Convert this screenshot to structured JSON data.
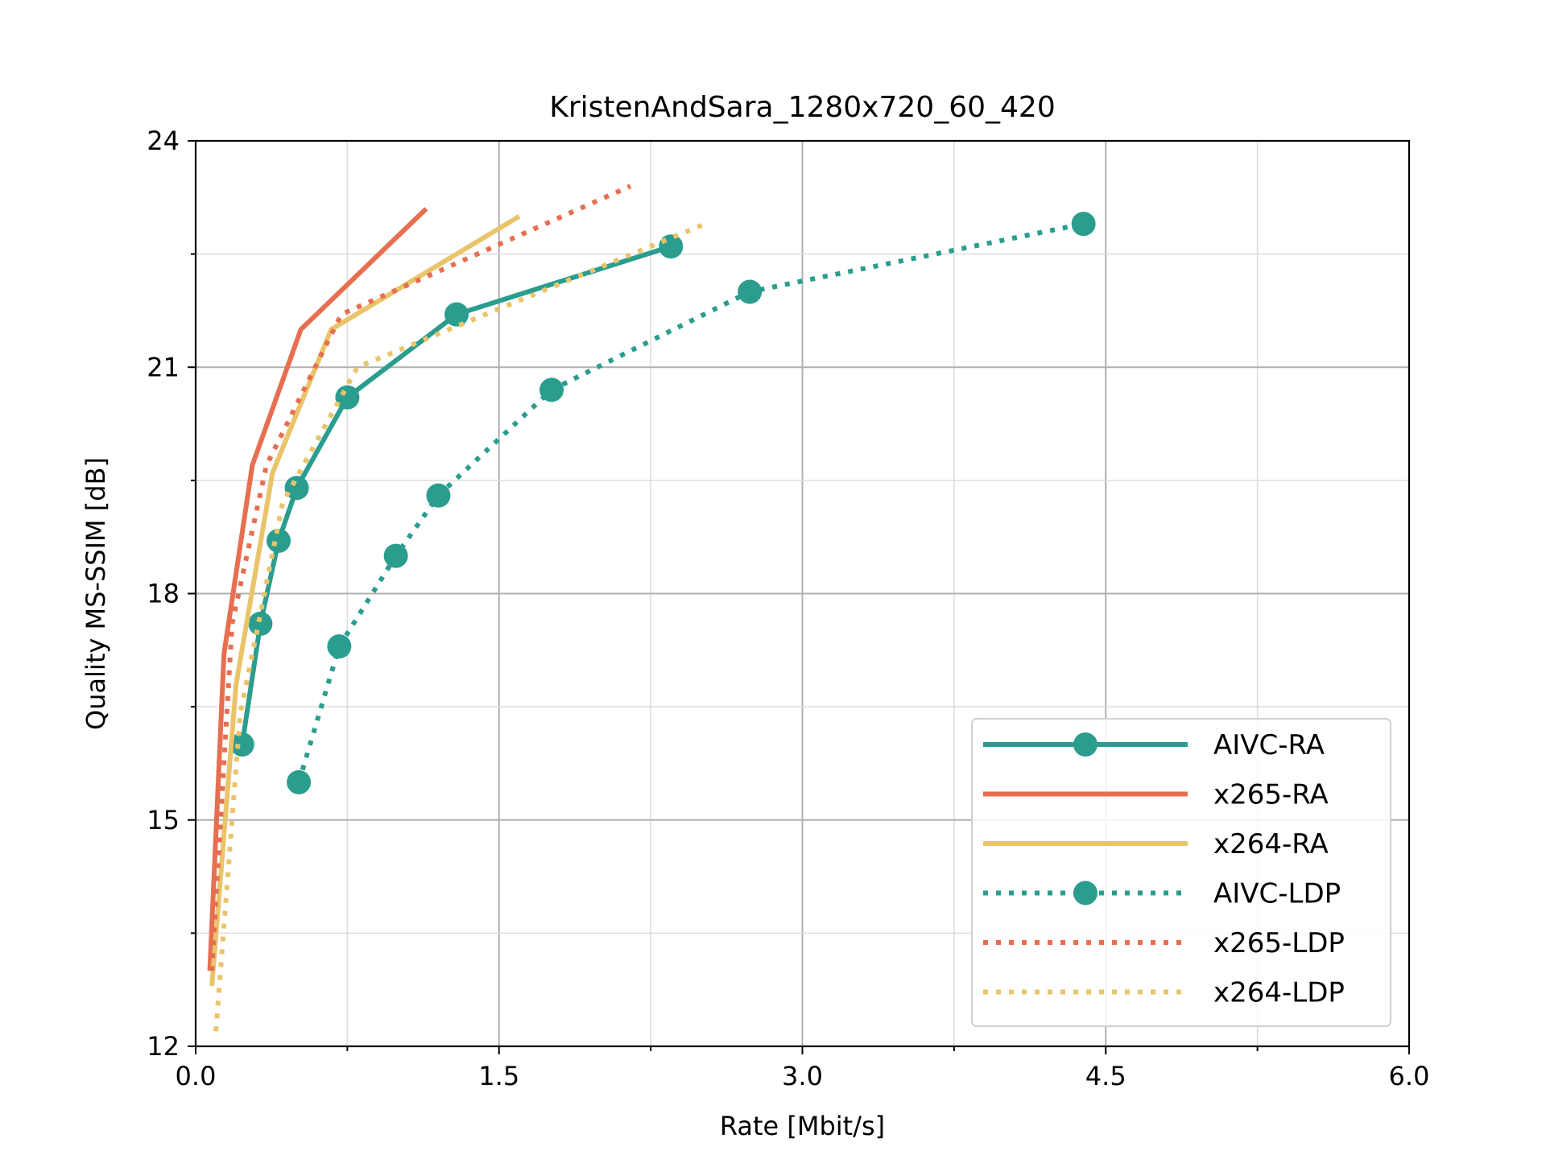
{
  "chart_data": {
    "type": "line",
    "title": "KristenAndSara_1280x720_60_420",
    "xlabel": "Rate [Mbit/s]",
    "ylabel": "Quality MS-SSIM [dB]",
    "xlim": [
      0,
      6
    ],
    "ylim": [
      12,
      24
    ],
    "xticks": [
      "0.0",
      "1.5",
      "3.0",
      "4.5",
      "6.0"
    ],
    "yticks": [
      "12",
      "15",
      "18",
      "21",
      "24"
    ],
    "grid": true,
    "legend_position": "lower right",
    "series": [
      {
        "name": "AIVC-RA",
        "color": "#2a9d8f",
        "style": "solid",
        "marker": "circle",
        "x": [
          0.23,
          0.32,
          0.41,
          0.5,
          0.75,
          1.29,
          2.35
        ],
        "y": [
          16.0,
          17.6,
          18.7,
          19.4,
          20.6,
          21.7,
          22.6
        ]
      },
      {
        "name": "x265-RA",
        "color": "#e76f51",
        "style": "solid",
        "marker": "none",
        "x": [
          0.07,
          0.14,
          0.28,
          0.52,
          1.14
        ],
        "y": [
          13.0,
          17.2,
          19.7,
          21.5,
          23.1
        ]
      },
      {
        "name": "x264-RA",
        "color": "#e9c46a",
        "style": "solid",
        "marker": "none",
        "x": [
          0.08,
          0.2,
          0.38,
          0.67,
          1.6
        ],
        "y": [
          12.8,
          16.8,
          19.6,
          21.5,
          23.0
        ]
      },
      {
        "name": "AIVC-LDP",
        "color": "#2a9d8f",
        "style": "dotted",
        "marker": "circle",
        "x": [
          0.51,
          0.71,
          0.99,
          1.2,
          1.76,
          2.74,
          4.39
        ],
        "y": [
          15.5,
          17.3,
          18.5,
          19.3,
          20.7,
          22.0,
          22.9
        ]
      },
      {
        "name": "x265-LDP",
        "color": "#e76f51",
        "style": "dotted",
        "marker": "none",
        "x": [
          0.08,
          0.18,
          0.35,
          0.72,
          2.15
        ],
        "y": [
          13.0,
          17.6,
          19.7,
          21.7,
          23.4
        ]
      },
      {
        "name": "x264-LDP",
        "color": "#e9c46a",
        "style": "dotted",
        "marker": "none",
        "x": [
          0.1,
          0.22,
          0.43,
          0.8,
          2.52
        ],
        "y": [
          12.2,
          16.4,
          19.2,
          21.0,
          22.9
        ]
      }
    ]
  }
}
